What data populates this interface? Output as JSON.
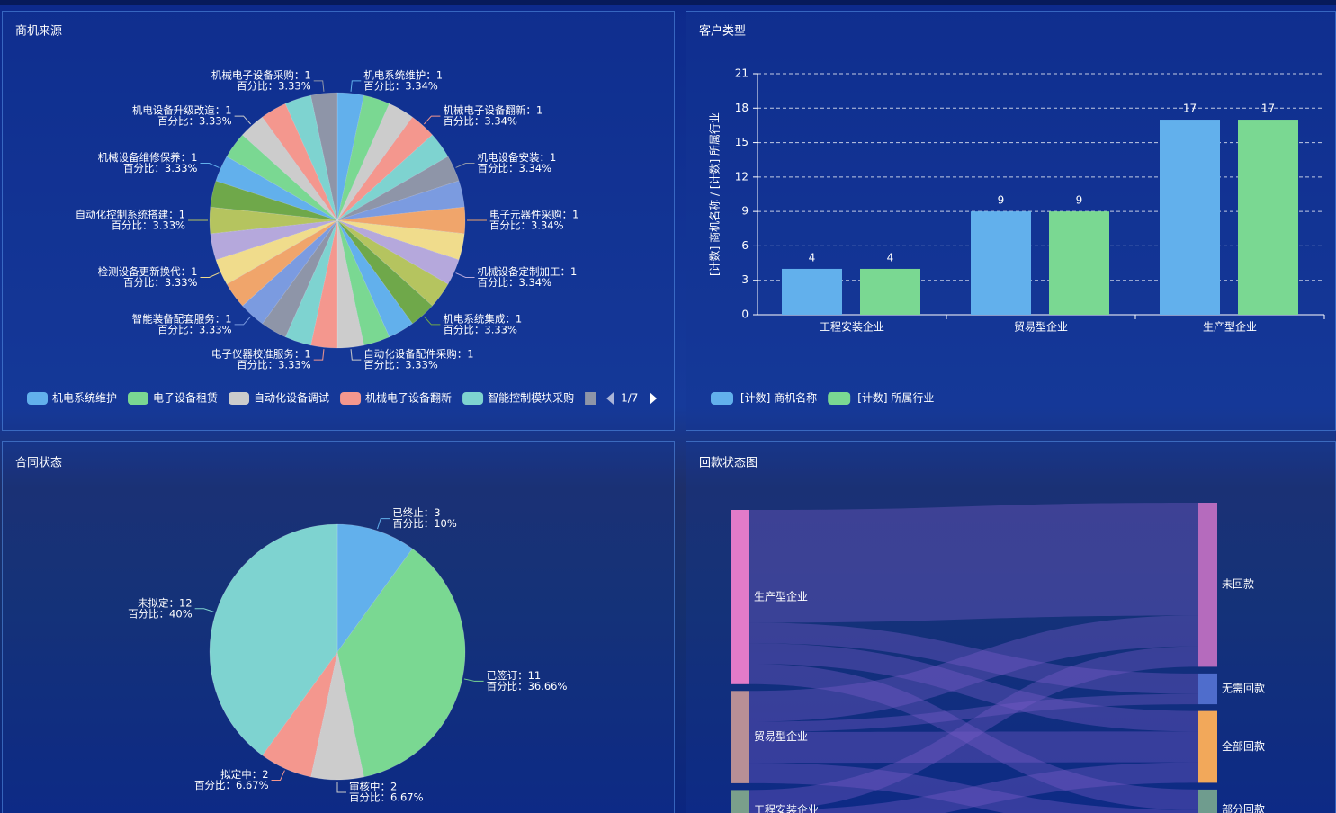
{
  "chart_data": [
    {
      "type": "pie",
      "title": "商机来源",
      "values": [
        1,
        1,
        1,
        1,
        1,
        1,
        1,
        1,
        1,
        1,
        1,
        1,
        1,
        1,
        1,
        1,
        1,
        1,
        1,
        1,
        1,
        1,
        1,
        1,
        1,
        1,
        1,
        1,
        1,
        1
      ],
      "categories": [
        "机电系统维护",
        "电子设备租赁",
        "自动化设备调试",
        "机械电子设备翻新",
        "智能控制模块采购",
        null,
        null,
        null,
        null,
        null,
        null,
        null,
        null,
        null,
        null,
        null,
        null,
        null,
        null,
        null,
        null,
        null,
        null,
        null,
        null,
        null,
        null,
        null,
        null,
        null
      ],
      "labels": [
        [
          "机电系统维护：1",
          "百分比：3.34%"
        ],
        null,
        null,
        [
          "机械电子设备翻新：1",
          "百分比：3.34%"
        ],
        null,
        [
          "机电设备安装：1",
          "百分比：3.34%"
        ],
        null,
        [
          "电子元器件采购：1",
          "百分比：3.34%"
        ],
        null,
        [
          "机械设备定制加工：1",
          "百分比：3.34%"
        ],
        null,
        [
          "机电系统集成：1",
          "百分比：3.33%"
        ],
        null,
        null,
        [
          "自动化设备配件采购：1",
          "百分比：3.33%"
        ],
        [
          "电子仪器校准服务：1",
          "百分比：3.33%"
        ],
        null,
        null,
        [
          "智能装备配套服务：1",
          "百分比：3.33%"
        ],
        null,
        [
          "检测设备更新换代：1",
          "百分比：3.33%"
        ],
        null,
        [
          "自动化控制系统搭建：1",
          "百分比：3.33%"
        ],
        null,
        [
          "机械设备维修保养：1",
          "百分比：3.33%"
        ],
        null,
        [
          "机电设备升级改造：1",
          "百分比：3.33%"
        ],
        null,
        null,
        [
          "机械电子设备采购：1",
          "百分比：3.33%"
        ]
      ],
      "colors": [
        "#62b0ec",
        "#7ad892",
        "#cccccc",
        "#f4978e",
        "#7ed3d0",
        "#8e95a8",
        "#7b9be0",
        "#f0a56b",
        "#f0dc8c",
        "#b5a8dc",
        "#b5c45f",
        "#6fa84a",
        "#62b0ec",
        "#7ad892",
        "#cccccc",
        "#f4978e",
        "#7ed3d0",
        "#8e95a8",
        "#7b9be0",
        "#f0a56b",
        "#f0dc8c",
        "#b5a8dc",
        "#b5c45f",
        "#6fa84a",
        "#62b0ec",
        "#7ad892",
        "#cccccc",
        "#f4978e",
        "#7ed3d0",
        "#8e95a8"
      ],
      "legend_page": "1/7"
    },
    {
      "type": "bar",
      "title": "客户类型",
      "categories": [
        "工程安装企业",
        "贸易型企业",
        "生产型企业"
      ],
      "series": [
        {
          "name": "[计数] 商机名称",
          "color": "#62b0ec",
          "values": [
            4,
            9,
            17
          ]
        },
        {
          "name": "[计数] 所属行业",
          "color": "#7ad892",
          "values": [
            4,
            9,
            17
          ]
        }
      ],
      "y_label": "[计数] 商机名称 / [计数] 所属行业",
      "ylim": [
        0,
        21
      ],
      "yticks": [
        0,
        3,
        6,
        9,
        12,
        15,
        18,
        21
      ],
      "grid": true
    },
    {
      "type": "pie",
      "title": "合同状态",
      "values": [
        3,
        11,
        2,
        2,
        12
      ],
      "labels": [
        [
          "已终止：3",
          "百分比：10%"
        ],
        [
          "已签订：11",
          "百分比：36.66%"
        ],
        [
          "审核中：2",
          "百分比：6.67%"
        ],
        [
          "拟定中：2",
          "百分比：6.67%"
        ],
        [
          "未拟定：12",
          "百分比：40%"
        ]
      ],
      "colors": [
        "#62b0ec",
        "#7ad892",
        "#cccccc",
        "#f4978e",
        "#7ed3d0"
      ]
    },
    {
      "type": "sankey",
      "title": "回款状态图",
      "nodes": [
        {
          "name": "生产型企业",
          "color": "#e27bc9"
        },
        {
          "name": "贸易型企业",
          "color": "#b88f96"
        },
        {
          "name": "工程安装企业",
          "color": "#7a9f8b"
        },
        {
          "name": "未回款",
          "color": "#b56bbd"
        },
        {
          "name": "无需回款",
          "color": "#4f6dcc"
        },
        {
          "name": "全部回款",
          "color": "#f2a85a"
        },
        {
          "name": "部分回款",
          "color": "#6f9c8e"
        }
      ],
      "links": [
        {
          "source": 0,
          "target": 3,
          "value": 11
        },
        {
          "source": 0,
          "target": 4,
          "value": 2
        },
        {
          "source": 0,
          "target": 5,
          "value": 2
        },
        {
          "source": 0,
          "target": 6,
          "value": 2
        },
        {
          "source": 1,
          "target": 3,
          "value": 3
        },
        {
          "source": 1,
          "target": 4,
          "value": 1
        },
        {
          "source": 1,
          "target": 5,
          "value": 3
        },
        {
          "source": 1,
          "target": 6,
          "value": 2
        },
        {
          "source": 2,
          "target": 3,
          "value": 2
        },
        {
          "source": 2,
          "target": 5,
          "value": 2
        }
      ],
      "link_color": "#7a5cc8"
    }
  ]
}
